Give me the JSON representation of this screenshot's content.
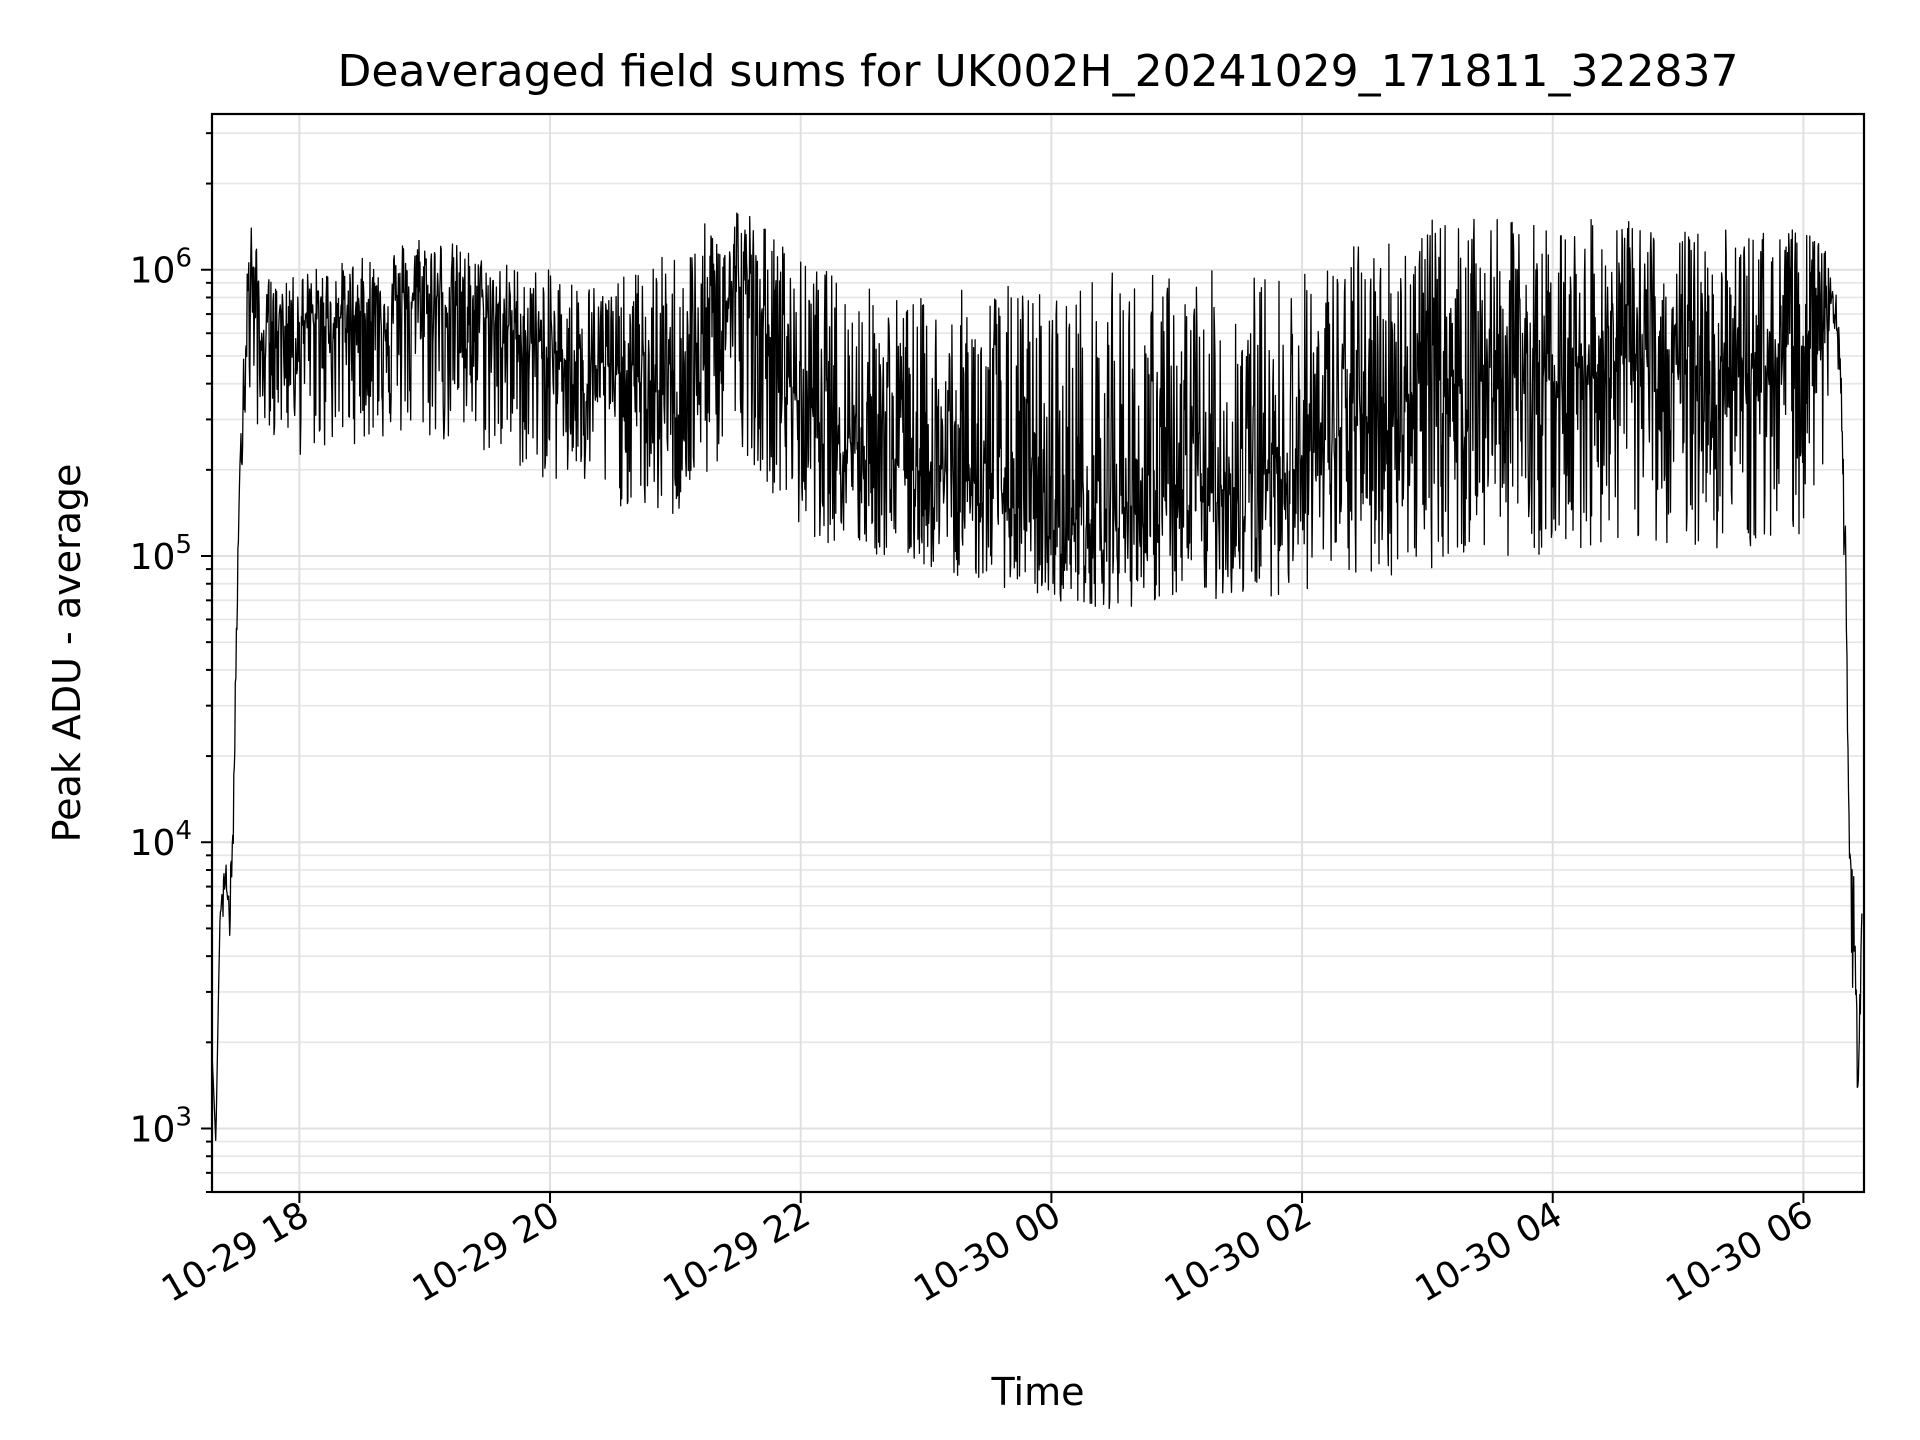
{
  "chart_data": {
    "type": "line",
    "title": "Deaveraged field sums for UK002H_20241029_171811_322837",
    "xlabel": "Time",
    "ylabel": "Peak ADU - average",
    "yscale": "log",
    "ylim": [
      600,
      3500000
    ],
    "xlim": [
      "2024-10-29T17:18:11",
      "2024-10-30T06:29:00"
    ],
    "grid": true,
    "x_ticks": [
      {
        "value": "2024-10-29T18:00",
        "label": "10-29 18"
      },
      {
        "value": "2024-10-29T20:00",
        "label": "10-29 20"
      },
      {
        "value": "2024-10-29T22:00",
        "label": "10-29 22"
      },
      {
        "value": "2024-10-30T00:00",
        "label": "10-30 00"
      },
      {
        "value": "2024-10-30T02:00",
        "label": "10-30 02"
      },
      {
        "value": "2024-10-30T04:00",
        "label": "10-30 04"
      },
      {
        "value": "2024-10-30T06:00",
        "label": "10-30 06"
      }
    ],
    "y_ticks": [
      {
        "value": 1000,
        "base": "10",
        "exp": "3"
      },
      {
        "value": 10000,
        "base": "10",
        "exp": "4"
      },
      {
        "value": 100000,
        "base": "10",
        "exp": "5"
      },
      {
        "value": 1000000,
        "base": "10",
        "exp": "6"
      }
    ],
    "series": [
      {
        "color": "#000000",
        "x": [
          "2024-10-29T17:18",
          "2024-10-29T17:20",
          "2024-10-29T17:22",
          "2024-10-29T17:24",
          "2024-10-29T17:26",
          "2024-10-29T17:28",
          "2024-10-29T17:30",
          "2024-10-29T17:32",
          "2024-10-29T17:34",
          "2024-10-29T17:36",
          "2024-10-29T17:38",
          "2024-10-29T17:40",
          "2024-10-29T17:42",
          "2024-10-29T17:44",
          "2024-10-29T17:46",
          "2024-10-29T17:48",
          "2024-10-29T17:50",
          "2024-10-29T17:52",
          "2024-10-29T17:54",
          "2024-10-29T17:56",
          "2024-10-29T17:58",
          "2024-10-29T18:00",
          "2024-10-29T18:30",
          "2024-10-29T19:00",
          "2024-10-29T19:30",
          "2024-10-29T20:00",
          "2024-10-29T20:30",
          "2024-10-29T21:00",
          "2024-10-29T21:30",
          "2024-10-29T22:00",
          "2024-10-29T22:30",
          "2024-10-29T23:00",
          "2024-10-29T23:30",
          "2024-10-30T00:00",
          "2024-10-30T00:30",
          "2024-10-30T01:00",
          "2024-10-30T01:30",
          "2024-10-30T02:00",
          "2024-10-30T02:30",
          "2024-10-30T03:00",
          "2024-10-30T03:30",
          "2024-10-30T04:00",
          "2024-10-30T04:30",
          "2024-10-30T05:00",
          "2024-10-30T05:30",
          "2024-10-30T06:00",
          "2024-10-30T06:10",
          "2024-10-30T06:14",
          "2024-10-30T06:16",
          "2024-10-30T06:18",
          "2024-10-30T06:20",
          "2024-10-30T06:22",
          "2024-10-30T06:24",
          "2024-10-30T06:26",
          "2024-10-30T06:28"
        ],
        "y": [
          2000,
          900,
          5500,
          8000,
          6000,
          9000,
          60000,
          250000,
          500000,
          900000,
          1000000,
          700000,
          500000,
          600000,
          800000,
          550000,
          700000,
          650000,
          600000,
          750000,
          600000,
          650000,
          700000,
          800000,
          700000,
          500000,
          450000,
          350000,
          900000,
          350000,
          250000,
          200000,
          180000,
          120000,
          150000,
          150000,
          180000,
          220000,
          300000,
          400000,
          450000,
          420000,
          500000,
          450000,
          420000,
          550000,
          700000,
          800000,
          600000,
          400000,
          100000,
          10000,
          6000,
          1500,
          5000
        ],
        "upper": [
          2000,
          900,
          5500,
          8000,
          9000,
          10000,
          70000,
          300000,
          1000000,
          1500000,
          1500000,
          1100000,
          800000,
          800000,
          1000000,
          900000,
          900000,
          900000,
          900000,
          1000000,
          900000,
          1000000,
          1100000,
          1400000,
          1100000,
          1000000,
          900000,
          1200000,
          1800000,
          1100000,
          900000,
          800000,
          900000,
          900000,
          1000000,
          1000000,
          1000000,
          1000000,
          1300000,
          1500000,
          1500000,
          1500000,
          1500000,
          1400000,
          1400000,
          1400000,
          1200000,
          1000000,
          800000,
          500000,
          150000,
          10000,
          8000,
          2000,
          7000
        ],
        "lower": [
          2000,
          900,
          5500,
          5000,
          4000,
          5000,
          50000,
          180000,
          300000,
          300000,
          300000,
          280000,
          250000,
          300000,
          280000,
          250000,
          280000,
          260000,
          250000,
          280000,
          250000,
          220000,
          250000,
          250000,
          220000,
          180000,
          150000,
          130000,
          250000,
          120000,
          100000,
          90000,
          80000,
          70000,
          65000,
          70000,
          70000,
          75000,
          80000,
          90000,
          100000,
          100000,
          110000,
          110000,
          100000,
          120000,
          200000,
          400000,
          400000,
          300000,
          60000,
          5000,
          2000,
          1300,
          3000
        ]
      }
    ]
  }
}
